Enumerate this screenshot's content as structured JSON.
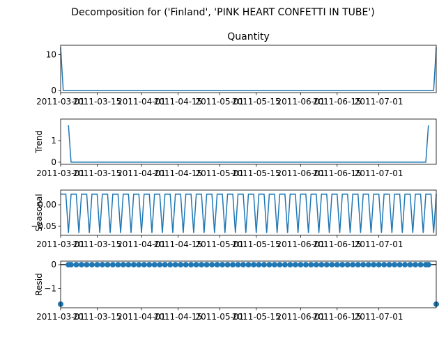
{
  "suptitle": "Decomposition for ('Finland', 'PINK  HEART CONFETTI IN TUBE')",
  "colors": {
    "line": "#1f77b4",
    "axis": "#000000",
    "background": "#ffffff"
  },
  "x_tick_labels": [
    "2011-03-01",
    "2011-03-15",
    "2011-04-01",
    "2011-04-15",
    "2011-05-01",
    "2011-05-15",
    "2011-06-01",
    "2011-06-15",
    "2011-07-01"
  ],
  "chart_data": [
    {
      "type": "line",
      "title": "Quantity",
      "ylabel": "",
      "x_range": [
        "2011-03-01",
        "2011-07-24"
      ],
      "ylim": [
        -0.6,
        12.6
      ],
      "yticks": [
        0,
        10
      ],
      "series": [
        {
          "values": [
            [
              0,
              12
            ],
            [
              1,
              0
            ],
            [
              143,
              0
            ],
            [
              144,
              12
            ]
          ]
        }
      ]
    },
    {
      "type": "line",
      "title": "",
      "ylabel": "Trend",
      "x_range": [
        "2011-03-01",
        "2011-07-24"
      ],
      "ylim": [
        -0.1,
        2.0
      ],
      "yticks": [
        0,
        1
      ],
      "series": [
        {
          "values": [
            [
              3,
              1.71
            ],
            [
              4,
              0
            ],
            [
              140,
              0
            ],
            [
              141,
              1.71
            ]
          ]
        }
      ]
    },
    {
      "type": "line",
      "title": "",
      "ylabel": "Seasonal",
      "x_range": [
        "2011-03-01",
        "2011-07-24"
      ],
      "ylim": [
        -0.071,
        0.034
      ],
      "yticks": [
        0.0,
        -0.05
      ],
      "ytick_labels": [
        "0.00",
        "−0.05"
      ],
      "seasonal_pattern": [
        0.0245,
        0.0245,
        0.0245,
        -0.0655
      ],
      "seasonal_period_days": 4,
      "n_days": 145
    },
    {
      "type": "scatter",
      "title": "",
      "ylabel": "Resid",
      "x_range": [
        "2011-03-01",
        "2011-07-24"
      ],
      "ylim": [
        -1.8,
        0.15
      ],
      "yticks": [
        0,
        -1
      ],
      "ytick_labels": [
        "0",
        "−1"
      ],
      "baseline": 0,
      "resid_values": {
        "endpoints": -1.65,
        "default": 0.0
      },
      "n_points": 145
    }
  ]
}
